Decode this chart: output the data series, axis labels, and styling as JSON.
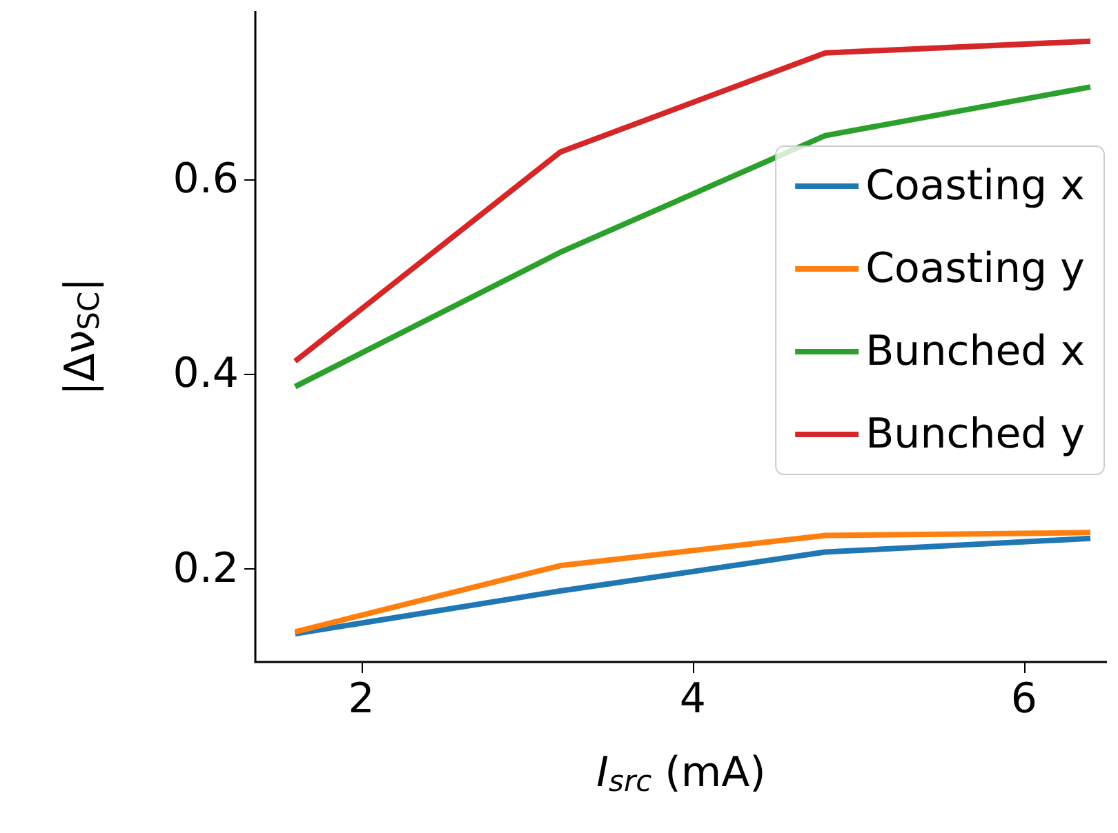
{
  "chart_data": {
    "type": "line",
    "xlabel": "I$_{src}$ (mA)",
    "ylabel": "|Δν$_{SC}$|",
    "x": [
      1.6,
      3.2,
      4.8,
      6.4
    ],
    "series": [
      {
        "name": "Coasting x",
        "color": "#1f77b4",
        "values": [
          0.133,
          0.177,
          0.217,
          0.231
        ]
      },
      {
        "name": "Coasting y",
        "color": "#ff7f0e",
        "values": [
          0.135,
          0.203,
          0.234,
          0.237
        ]
      },
      {
        "name": "Bunched x",
        "color": "#2ca02c",
        "values": [
          0.387,
          0.525,
          0.645,
          0.695
        ]
      },
      {
        "name": "Bunched y",
        "color": "#d62728",
        "values": [
          0.413,
          0.628,
          0.73,
          0.742
        ]
      }
    ],
    "xlim": [
      1.36,
      6.5
    ],
    "xticks": [
      2,
      4,
      6
    ],
    "ylim": [
      0.104,
      0.773
    ],
    "yticks": [
      0.2,
      0.4,
      0.6
    ],
    "grid": false,
    "legend": "right",
    "marker": "none",
    "line_style": "solid"
  }
}
